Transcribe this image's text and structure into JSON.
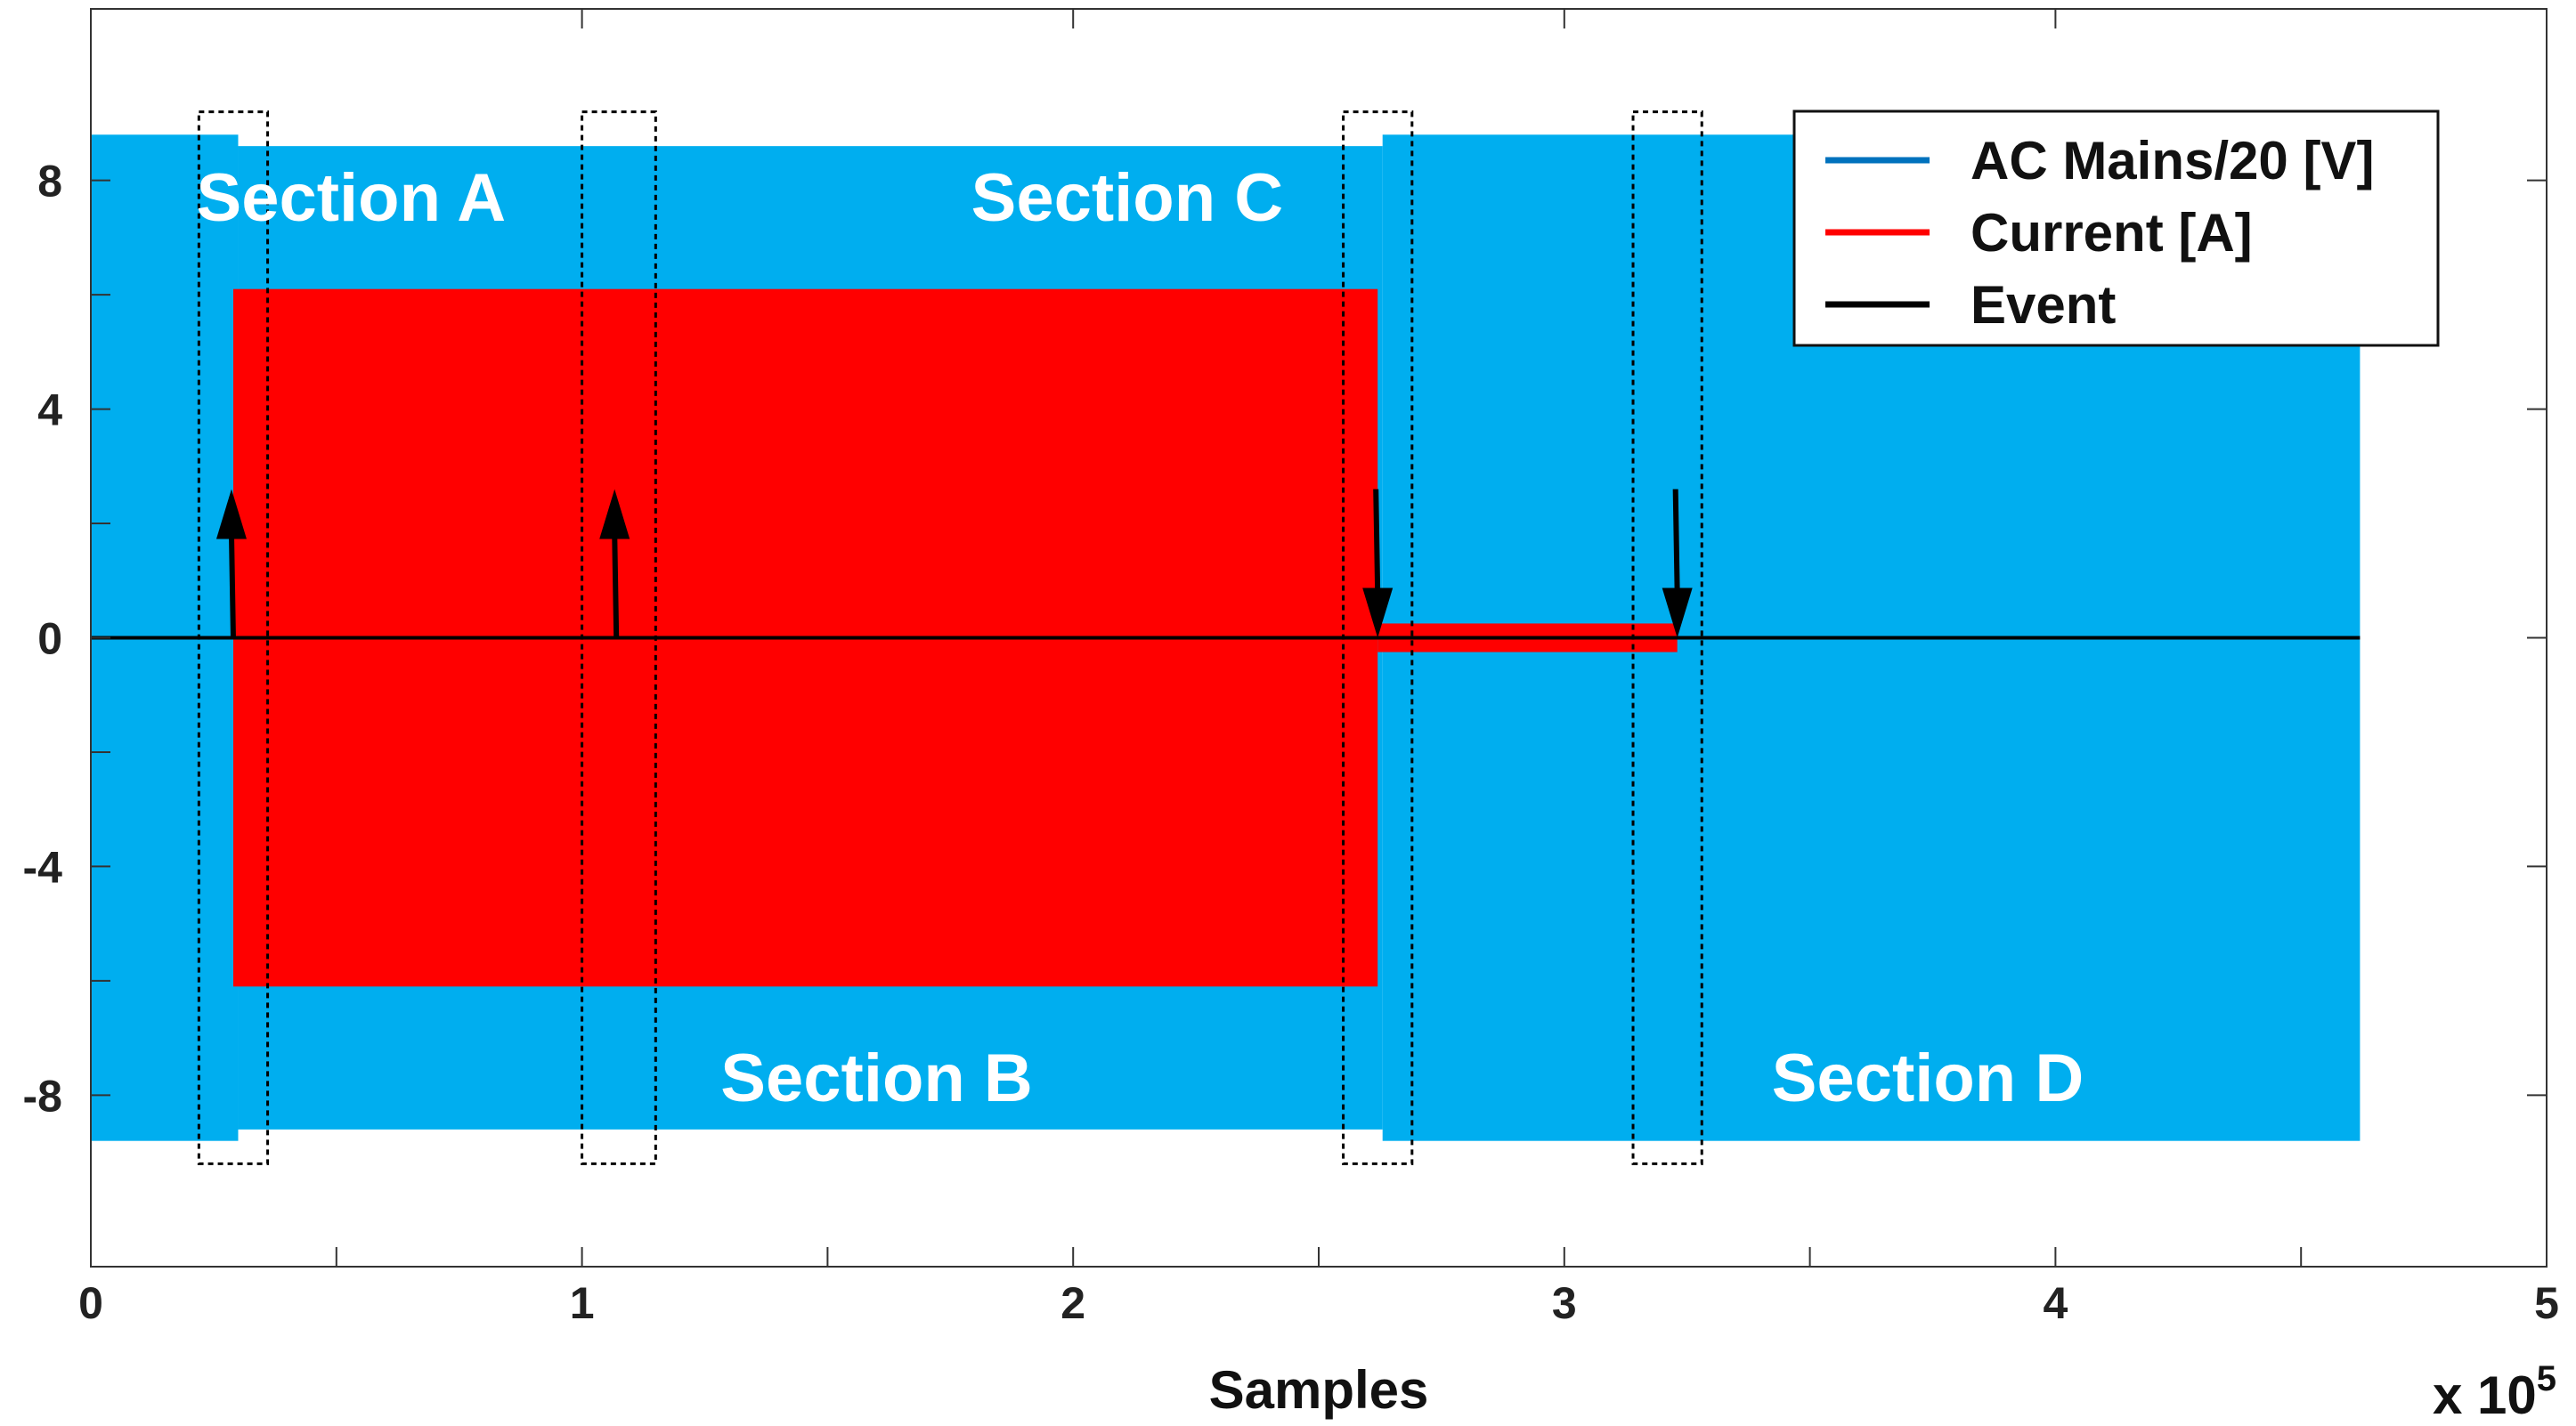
{
  "chart_data": {
    "type": "line",
    "title": "",
    "xlabel": "Samples",
    "x_multiplier": "x 10",
    "x_multiplier_exp": "5",
    "ylabel": "",
    "xlim": [
      0,
      5
    ],
    "ylim": [
      -11,
      11
    ],
    "x_ticks": [
      0,
      1,
      2,
      3,
      4,
      5
    ],
    "y_ticks": [
      8,
      4,
      0,
      -4,
      -8
    ],
    "y_minor_ticks": [
      6,
      2,
      -2,
      -6
    ],
    "x_minor_ticks": [
      0.5,
      1.5,
      2.5,
      3.5,
      4.5
    ],
    "series": [
      {
        "name": "AC Mains/20 [V]",
        "color": "#00AEEF",
        "legend_color": "#0072BD",
        "envelope": [
          {
            "x_start": 0,
            "x_end": 0.3,
            "amplitude": 8.8
          },
          {
            "x_start": 0.3,
            "x_end": 2.63,
            "amplitude": 8.6
          },
          {
            "x_start": 2.63,
            "x_end": 4.62,
            "amplitude": 8.8
          }
        ]
      },
      {
        "name": "Current [A]",
        "color": "#FF0000",
        "envelope": [
          {
            "x_start": 0.29,
            "x_end": 2.62,
            "upper": 6.1,
            "lower": -6.1
          },
          {
            "x_start": 2.62,
            "x_end": 3.23,
            "upper": 0.25,
            "lower": -0.25
          }
        ]
      },
      {
        "name": "Event",
        "color": "#000000",
        "baseline": {
          "x_start": 0,
          "x_end": 4.62,
          "y": 0
        },
        "events": [
          {
            "x": 0.29,
            "direction": "up",
            "magnitude": 2.6
          },
          {
            "x": 1.07,
            "direction": "up",
            "magnitude": 2.6
          },
          {
            "x": 2.62,
            "direction": "down",
            "magnitude": 2.6
          },
          {
            "x": 3.23,
            "direction": "down",
            "magnitude": 2.6
          }
        ]
      }
    ],
    "highlight_boxes": [
      {
        "x_start": 0.22,
        "x_end": 0.36,
        "y_top": 9.2,
        "y_bottom": -9.2
      },
      {
        "x_start": 1.0,
        "x_end": 1.15,
        "y_top": 9.2,
        "y_bottom": -9.2
      },
      {
        "x_start": 2.55,
        "x_end": 2.69,
        "y_top": 9.2,
        "y_bottom": -9.2
      },
      {
        "x_start": 3.14,
        "x_end": 3.28,
        "y_top": 9.2,
        "y_bottom": -9.2
      }
    ],
    "annotations": [
      {
        "text": "Section A",
        "x": 0.53,
        "y": 7.7
      },
      {
        "text": "Section C",
        "x": 2.11,
        "y": 7.7
      },
      {
        "text": "Section B",
        "x": 1.6,
        "y": -7.7
      },
      {
        "text": "Section D",
        "x": 3.74,
        "y": -7.7
      }
    ],
    "legend": {
      "position": "top-right",
      "entries": [
        "AC Mains/20 [V]",
        "Current [A]",
        "Event"
      ]
    }
  }
}
